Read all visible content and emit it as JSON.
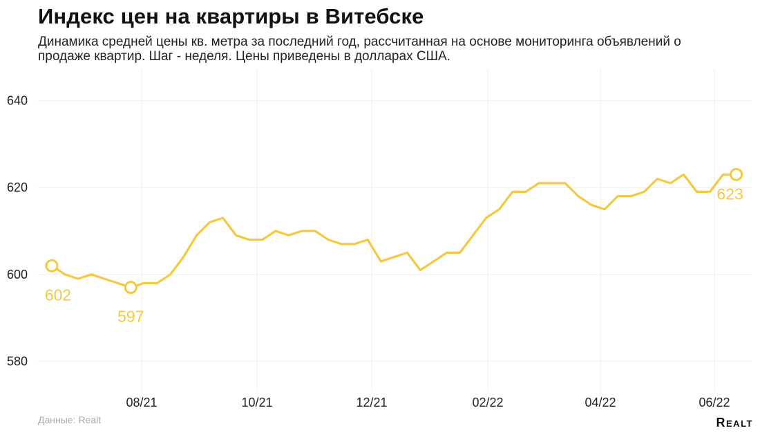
{
  "header": {
    "title": "Индекс цен на квартиры в Витебске",
    "subtitle": "Динамика средней цены кв. метра за последний год, рассчитанная на основе мониторинга объявлений о продаже квартир. Шаг - неделя. Цены приведены в долларах США."
  },
  "footer": {
    "source": "Данные: Realt",
    "logo_first": "R",
    "logo_rest": "EALT"
  },
  "chart_data": {
    "type": "line",
    "title": "Индекс цен на квартиры в Витебске",
    "xlabel": "",
    "ylabel": "",
    "ylim": [
      573,
      643
    ],
    "yticks": [
      "580",
      "600",
      "620",
      "640"
    ],
    "xticks": [
      "08/21",
      "10/21",
      "12/21",
      "02/22",
      "04/22",
      "06/22"
    ],
    "grid": true,
    "line_color": "#f5c842",
    "series": [
      {
        "values": [
          602,
          600,
          599,
          600,
          599,
          598,
          597,
          598,
          598,
          600,
          604,
          609,
          612,
          613,
          609,
          608,
          608,
          610,
          609,
          610,
          610,
          608,
          607,
          607,
          608,
          603,
          604,
          605,
          601,
          603,
          605,
          605,
          609,
          613,
          615,
          619,
          619,
          621,
          621,
          621,
          618,
          616,
          615,
          618,
          618,
          619,
          622,
          621,
          623,
          619,
          619,
          623,
          623
        ]
      }
    ],
    "annotations": [
      {
        "index": 0,
        "label": "602"
      },
      {
        "index": 6,
        "label": "597"
      },
      {
        "index": 52,
        "label": "623"
      }
    ]
  }
}
